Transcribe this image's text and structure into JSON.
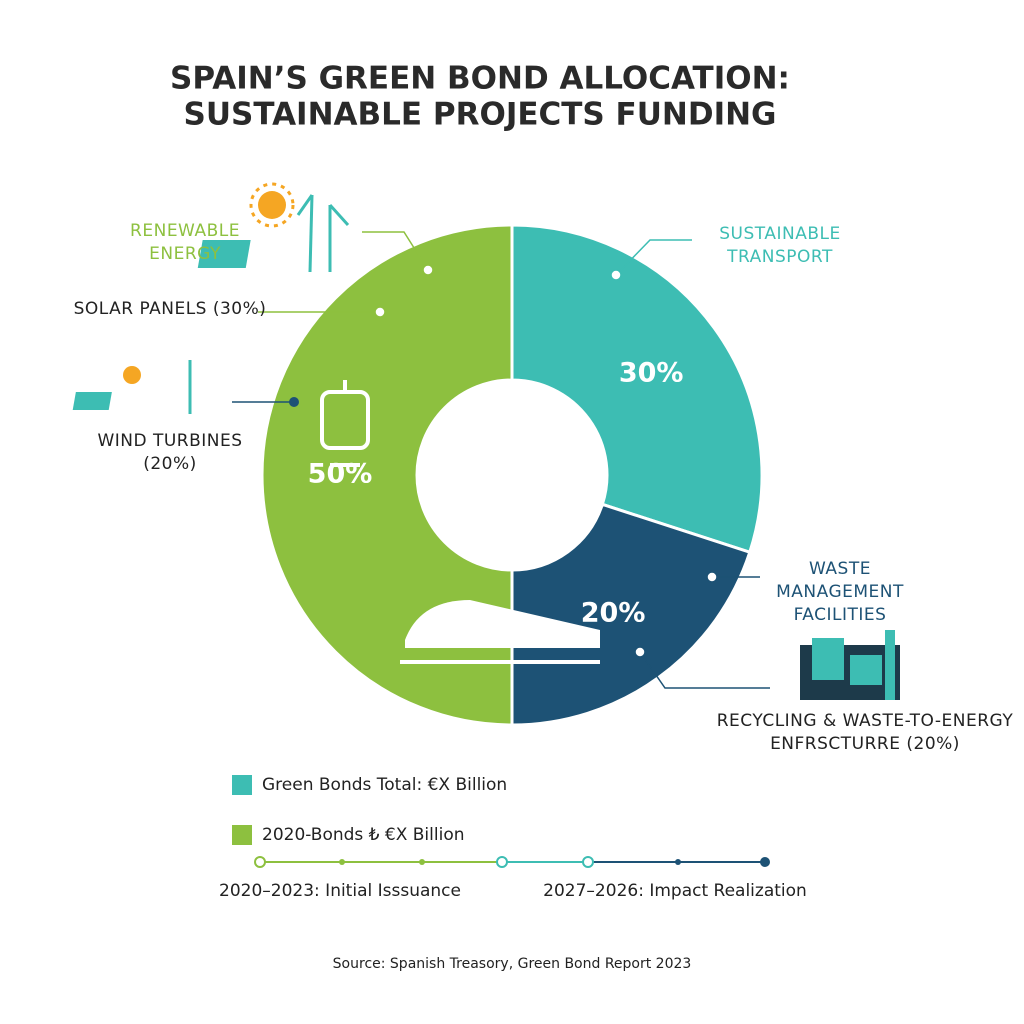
{
  "chart_data": {
    "type": "pie",
    "donut": true,
    "title": [
      "SPAIN’S GREEN BOND ALLOCATION:",
      "SUSTAINABLE PROJECTS FUNDING"
    ],
    "categories": [
      "SUSTAINABLE TRANSPORT",
      "WASTE MANAGEMENT FACILITIES",
      "RENEWABLE ENERGY"
    ],
    "values": [
      30,
      20,
      50
    ],
    "value_labels": [
      "30%",
      "20%",
      "50%"
    ],
    "colors": [
      "#3dbdb3",
      "#1d5275",
      "#8dc03f"
    ],
    "annotations": [
      "SOLAR PANELS (30%)",
      "WIND TURBINES (20%)",
      "RECYCLING & WASTE-TO-ENERGY ENFRSCTURRE (20%)"
    ],
    "legend_items": [
      {
        "label": "Green Bonds Total: €X Billion",
        "color": "#3dbdb3"
      },
      {
        "label": "2020-Bonds ₺ €X Billion",
        "color": "#8dc03f"
      }
    ],
    "timeline": [
      "2020–2023: Initial Isssuance",
      "2027–2026: Impact Realization"
    ],
    "source": "Source: Spanish Treasory, Green Bond Report 2023"
  }
}
